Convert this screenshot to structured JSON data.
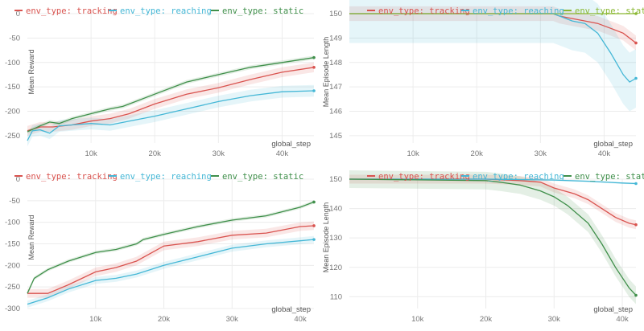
{
  "chart_data": [
    {
      "type": "line",
      "xlabel": "global_step",
      "ylabel": "Mean Reward",
      "xlim": [
        0,
        45000
      ],
      "ylim": [
        -265,
        0
      ],
      "xticks": [
        10000,
        20000,
        30000,
        40000
      ],
      "xtick_labels": [
        "10k",
        "20k",
        "30k",
        "40k"
      ],
      "yticks": [
        0,
        -50,
        -100,
        -150,
        -200,
        -250
      ],
      "ytick_labels": [
        "0",
        "-50",
        "-100",
        "-150",
        "-200",
        "-250"
      ],
      "legend_position": "top-left",
      "series": [
        {
          "name": "env_type: tracking",
          "color": "#d9534f",
          "x": [
            0,
            2000,
            4000,
            7000,
            10000,
            13000,
            16000,
            20000,
            25000,
            30000,
            35000,
            40000,
            45000
          ],
          "y": [
            -240,
            -232,
            -232,
            -228,
            -220,
            -215,
            -205,
            -185,
            -165,
            -152,
            -135,
            -120,
            -110
          ],
          "band": 10
        },
        {
          "name": "env_type: reaching",
          "color": "#44b7d6",
          "x": [
            0,
            800,
            2000,
            3500,
            5000,
            7000,
            10000,
            13000,
            16000,
            20000,
            25000,
            30000,
            35000,
            40000,
            45000
          ],
          "y": [
            -260,
            -240,
            -238,
            -245,
            -230,
            -228,
            -225,
            -228,
            -220,
            -210,
            -195,
            -180,
            -168,
            -160,
            -158
          ],
          "band": 12
        },
        {
          "name": "env_type: static",
          "color": "#3f8f4a",
          "x": [
            0,
            2000,
            3500,
            5000,
            7000,
            10000,
            13000,
            15000,
            20000,
            25000,
            30000,
            35000,
            40000,
            45000
          ],
          "y": [
            -242,
            -230,
            -222,
            -225,
            -215,
            -205,
            -195,
            -190,
            -165,
            -140,
            -125,
            -110,
            -100,
            -90
          ],
          "band": 4
        }
      ]
    },
    {
      "type": "line",
      "xlabel": "global_step",
      "ylabel": "Mean Episode Length",
      "xlim": [
        0,
        45000
      ],
      "ylim": [
        144.7,
        150
      ],
      "xticks": [
        10000,
        20000,
        30000,
        40000
      ],
      "xtick_labels": [
        "10k",
        "20k",
        "30k",
        "40k"
      ],
      "yticks": [
        150,
        149,
        148,
        147,
        146,
        145
      ],
      "ytick_labels": [
        "150",
        "149",
        "148",
        "147",
        "146",
        "145"
      ],
      "legend_position": "top-left",
      "series": [
        {
          "name": "env_type: tracking",
          "color": "#d9534f",
          "x": [
            0,
            32000,
            33000,
            35000,
            37000,
            39000,
            41000,
            43000,
            45000
          ],
          "y": [
            150,
            150,
            149.9,
            149.8,
            149.7,
            149.6,
            149.4,
            149.2,
            148.8
          ],
          "band": 0.3
        },
        {
          "name": "env_type: reaching",
          "color": "#44b7d6",
          "x": [
            0,
            32000,
            33000,
            35000,
            37000,
            39000,
            41000,
            43000,
            44000,
            45000
          ],
          "y": [
            150,
            150,
            149.9,
            149.7,
            149.6,
            149.2,
            148.4,
            147.5,
            147.2,
            147.35
          ],
          "band": 1.2
        },
        {
          "name": "env_type: static",
          "color": "#8bb833",
          "x": [
            0,
            45000
          ],
          "y": [
            150,
            150
          ],
          "band": 0
        }
      ]
    },
    {
      "type": "line",
      "xlabel": "global_step",
      "ylabel": "Mean Reward",
      "xlim": [
        0,
        42000
      ],
      "ylim": [
        -300,
        0
      ],
      "xticks": [
        10000,
        20000,
        30000,
        40000
      ],
      "xtick_labels": [
        "10k",
        "20k",
        "30k",
        "40k"
      ],
      "yticks": [
        0,
        -50,
        -100,
        -150,
        -200,
        -250,
        -300
      ],
      "ytick_labels": [
        "0",
        "-50",
        "-100",
        "-150",
        "-200",
        "-250",
        "-300"
      ],
      "legend_position": "top-left",
      "series": [
        {
          "name": "env_type: tracking",
          "color": "#d9534f",
          "x": [
            0,
            3000,
            6000,
            10000,
            13000,
            16000,
            20000,
            25000,
            30000,
            35000,
            40000,
            42000
          ],
          "y": [
            -265,
            -265,
            -245,
            -215,
            -205,
            -190,
            -155,
            -145,
            -130,
            -125,
            -110,
            -108
          ],
          "band": 10
        },
        {
          "name": "env_type: reaching",
          "color": "#44b7d6",
          "x": [
            0,
            3000,
            6000,
            10000,
            13000,
            16000,
            20000,
            25000,
            30000,
            35000,
            40000,
            42000
          ],
          "y": [
            -290,
            -275,
            -255,
            -235,
            -230,
            -220,
            -200,
            -180,
            -160,
            -150,
            -143,
            -140
          ],
          "band": 8
        },
        {
          "name": "env_type: static",
          "color": "#3f8f4a",
          "x": [
            0,
            1000,
            3000,
            6000,
            10000,
            13000,
            16000,
            17000,
            20000,
            25000,
            30000,
            35000,
            40000,
            42000
          ],
          "y": [
            -265,
            -230,
            -210,
            -190,
            -170,
            -163,
            -150,
            -140,
            -128,
            -110,
            -95,
            -85,
            -65,
            -53
          ],
          "band": 4
        }
      ]
    },
    {
      "type": "line",
      "xlabel": "global_step",
      "ylabel": "Mean Episode Length",
      "xlim": [
        0,
        42000
      ],
      "ylim": [
        106,
        150
      ],
      "xticks": [
        10000,
        20000,
        30000,
        40000
      ],
      "xtick_labels": [
        "10k",
        "20k",
        "30k",
        "40k"
      ],
      "yticks": [
        150,
        140,
        130,
        120,
        110
      ],
      "ytick_labels": [
        "150",
        "140",
        "130",
        "120",
        "110"
      ],
      "legend_position": "top-left",
      "series": [
        {
          "name": "env_type: tracking",
          "color": "#d9534f",
          "x": [
            0,
            20000,
            25000,
            28000,
            30000,
            33000,
            35000,
            37000,
            39000,
            41000,
            42000
          ],
          "y": [
            150,
            150,
            149.5,
            149,
            147,
            145,
            143,
            140,
            137,
            135,
            134.5
          ],
          "band": 1.5
        },
        {
          "name": "env_type: reaching",
          "color": "#44b7d6",
          "x": [
            0,
            20000,
            30000,
            35000,
            40000,
            42000
          ],
          "y": [
            150,
            150,
            149.7,
            149.3,
            148.7,
            148.5
          ],
          "band": 0.3
        },
        {
          "name": "env_type: static",
          "color": "#3f8f4a",
          "x": [
            0,
            20000,
            22000,
            25000,
            28000,
            30000,
            32000,
            35000,
            37000,
            39000,
            41000,
            42000
          ],
          "y": [
            150,
            149.5,
            149,
            148,
            146,
            144,
            141,
            135,
            128,
            120,
            113,
            110.5
          ],
          "band": 3
        }
      ]
    }
  ]
}
